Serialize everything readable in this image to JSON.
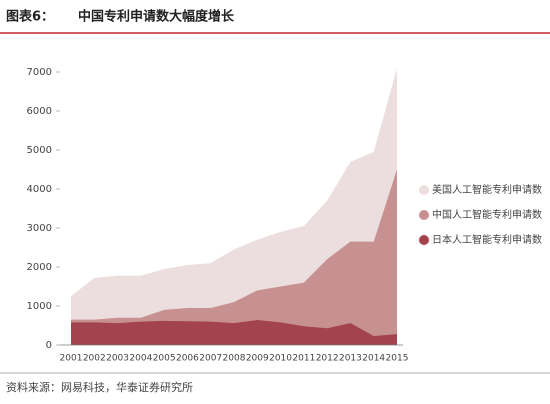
{
  "chart_data": {
    "type": "area",
    "figure_label": "图表6：",
    "title": "中国专利申请数大幅度增长",
    "source": "资料来源：网易科技，华泰证券研究所",
    "categories": [
      "2001",
      "2002",
      "2003",
      "2004",
      "2005",
      "2006",
      "2007",
      "2008",
      "2009",
      "2010",
      "2011",
      "2012",
      "2013",
      "2014",
      "2015"
    ],
    "series": [
      {
        "name": "美国人工智能专利申请数",
        "color": "#ecdede",
        "values": [
          1250,
          1720,
          1780,
          1780,
          1950,
          2050,
          2100,
          2450,
          2700,
          2900,
          3050,
          3700,
          4700,
          4950,
          7100
        ]
      },
      {
        "name": "中国人工智能专利申请数",
        "color": "#c79191",
        "values": [
          650,
          650,
          700,
          700,
          900,
          950,
          950,
          1100,
          1400,
          1500,
          1600,
          2200,
          2650,
          2650,
          4500
        ]
      },
      {
        "name": "日本人工智能专利申请数",
        "color": "#a3434d",
        "values": [
          580,
          580,
          560,
          600,
          620,
          610,
          600,
          560,
          640,
          580,
          480,
          430,
          560,
          230,
          280
        ]
      }
    ],
    "ylim": [
      0,
      7000
    ],
    "yticks": [
      0,
      1000,
      2000,
      3000,
      4000,
      5000,
      6000,
      7000
    ],
    "legend": "right"
  }
}
